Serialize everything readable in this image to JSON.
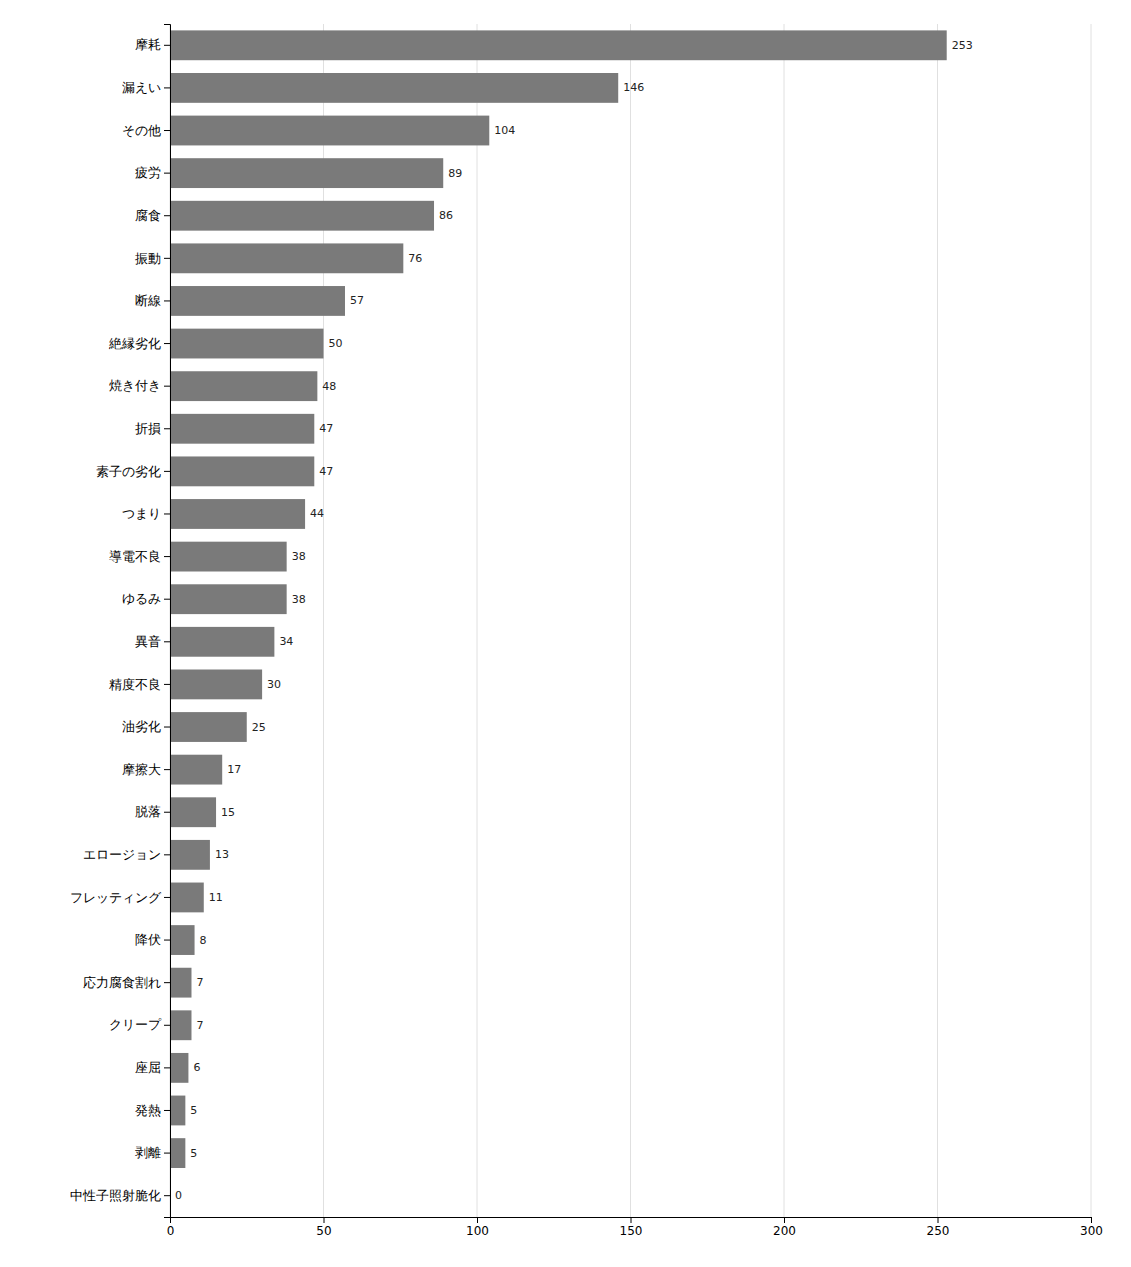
{
  "chart_data": {
    "type": "bar",
    "orientation": "horizontal",
    "categories": [
      "摩耗",
      "漏えい",
      "その他",
      "疲労",
      "腐食",
      "振動",
      "断線",
      "絶縁劣化",
      "焼き付き",
      "折損",
      "素子の劣化",
      "つまり",
      "導電不良",
      "ゆるみ",
      "異音",
      "精度不良",
      "油劣化",
      "摩擦大",
      "脱落",
      "エロージョン",
      "フレッティング",
      "降伏",
      "応力腐食割れ",
      "クリープ",
      "座屈",
      "発熱",
      "剥離",
      "中性子照射脆化"
    ],
    "values": [
      253,
      146,
      104,
      89,
      86,
      76,
      57,
      50,
      48,
      47,
      47,
      44,
      38,
      38,
      34,
      30,
      25,
      17,
      15,
      13,
      11,
      8,
      7,
      7,
      6,
      5,
      5,
      0
    ],
    "color": "#7a7a7a",
    "xlim": [
      0,
      300
    ],
    "xticks": [
      0,
      50,
      100,
      150,
      200,
      250,
      300
    ],
    "grid": true,
    "data_labels": true
  }
}
